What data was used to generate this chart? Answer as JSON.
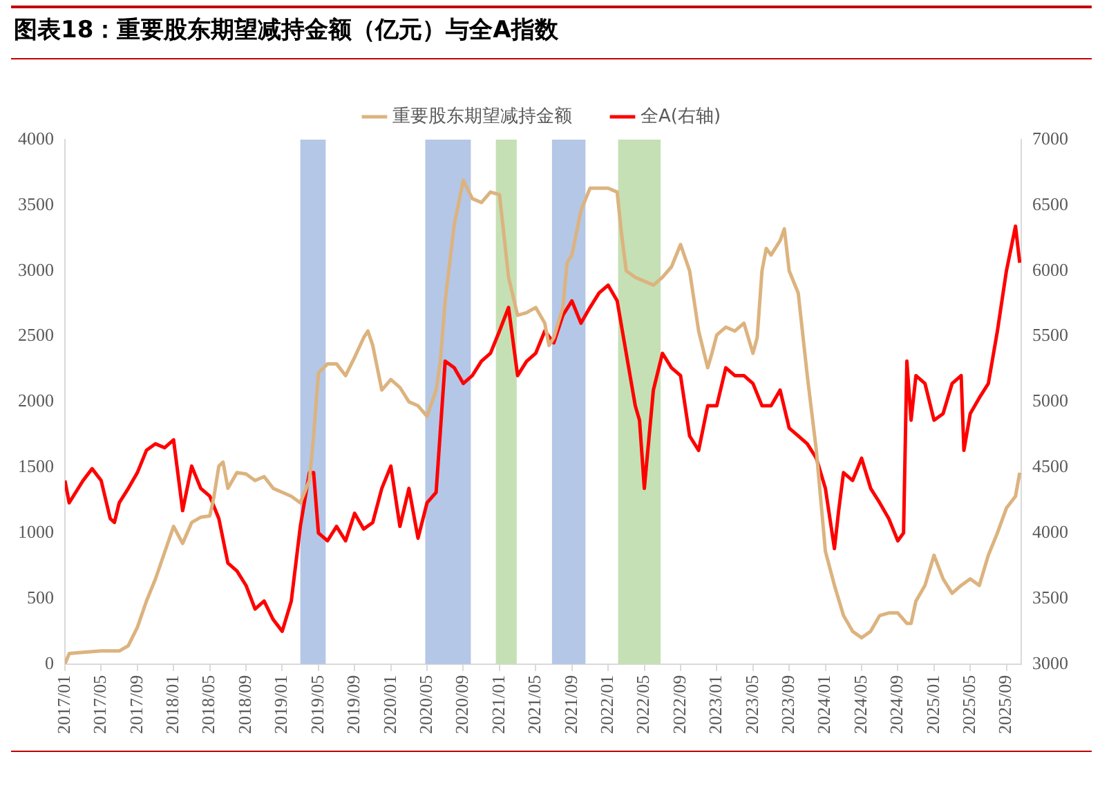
{
  "chart_data": {
    "type": "line",
    "title": "图表18：重要股东期望减持金额（亿元）与全A指数",
    "legend": "top",
    "grid": false,
    "marker": "none",
    "line_style": "solid",
    "xlim": [
      "2017-01-01",
      "2025-10-20"
    ],
    "xticks": [
      {
        "value": "2017-01",
        "label": "2017/01"
      },
      {
        "value": "2017-05",
        "label": "2017/05"
      },
      {
        "value": "2017-09",
        "label": "2017/09"
      },
      {
        "value": "2018-01",
        "label": "2018/01"
      },
      {
        "value": "2018-05",
        "label": "2018/05"
      },
      {
        "value": "2018-09",
        "label": "2018/09"
      },
      {
        "value": "2019-01",
        "label": "2019/01"
      },
      {
        "value": "2019-05",
        "label": "2019/05"
      },
      {
        "value": "2019-09",
        "label": "2019/09"
      },
      {
        "value": "2020-01",
        "label": "2020/01"
      },
      {
        "value": "2020-05",
        "label": "2020/05"
      },
      {
        "value": "2020-09",
        "label": "2020/09"
      },
      {
        "value": "2021-01",
        "label": "2021/01"
      },
      {
        "value": "2021-05",
        "label": "2021/05"
      },
      {
        "value": "2021-09",
        "label": "2021/09"
      },
      {
        "value": "2022-01",
        "label": "2022/01"
      },
      {
        "value": "2022-05",
        "label": "2022/05"
      },
      {
        "value": "2022-09",
        "label": "2022/09"
      },
      {
        "value": "2023-01",
        "label": "2023/01"
      },
      {
        "value": "2023-05",
        "label": "2023/05"
      },
      {
        "value": "2023-09",
        "label": "2023/09"
      },
      {
        "value": "2024-01",
        "label": "2024/01"
      },
      {
        "value": "2024-05",
        "label": "2024/05"
      },
      {
        "value": "2024-09",
        "label": "2024/09"
      },
      {
        "value": "2025-01",
        "label": "2025/01"
      },
      {
        "value": "2025-05",
        "label": "2025/05"
      },
      {
        "value": "2025-09",
        "label": "2025/09"
      }
    ],
    "ylim": [
      0,
      4000
    ],
    "yticks": [
      0,
      500,
      1000,
      1500,
      2000,
      2500,
      3000,
      3500,
      4000
    ],
    "y2lim": [
      3000,
      7000
    ],
    "y2ticks": [
      3000,
      3500,
      4000,
      4500,
      5000,
      5500,
      6000,
      6500,
      7000
    ],
    "bands": [
      {
        "axis": "x",
        "from": "2019-03-01",
        "to": "2019-05-25",
        "color": "#b4c7e7"
      },
      {
        "axis": "x",
        "from": "2020-04-25",
        "to": "2020-09-26",
        "color": "#b4c7e7"
      },
      {
        "axis": "x",
        "from": "2020-12-19",
        "to": "2021-02-28",
        "color": "#c5e0b4"
      },
      {
        "axis": "x",
        "from": "2021-06-25",
        "to": "2021-10-16",
        "color": "#b4c7e7"
      },
      {
        "axis": "x",
        "from": "2022-02-04",
        "to": "2022-06-25",
        "color": "#c5e0b4"
      }
    ],
    "series": [
      {
        "name": "重要股东期望减持金额",
        "color": "#dcb37f",
        "x": [
          "2017-01-01",
          "2017-01-15",
          "2017-03-01",
          "2017-05-01",
          "2017-07-01",
          "2017-08-01",
          "2017-09-01",
          "2017-10-01",
          "2017-11-01",
          "2017-12-01",
          "2018-01-01",
          "2018-02-01",
          "2018-03-01",
          "2018-04-01",
          "2018-05-01",
          "2018-05-15",
          "2018-06-01",
          "2018-06-15",
          "2018-07-01",
          "2018-08-01",
          "2018-09-01",
          "2018-10-01",
          "2018-11-01",
          "2018-12-01",
          "2019-01-01",
          "2019-02-01",
          "2019-03-01",
          "2019-04-01",
          "2019-04-15",
          "2019-05-01",
          "2019-06-01",
          "2019-07-01",
          "2019-08-01",
          "2019-09-01",
          "2019-10-01",
          "2019-10-15",
          "2019-11-01",
          "2019-12-01",
          "2020-01-01",
          "2020-02-01",
          "2020-03-01",
          "2020-04-01",
          "2020-05-01",
          "2020-06-01",
          "2020-06-15",
          "2020-07-01",
          "2020-08-01",
          "2020-09-01",
          "2020-10-01",
          "2020-11-01",
          "2020-12-01",
          "2021-01-01",
          "2021-01-15",
          "2021-02-01",
          "2021-03-01",
          "2021-04-01",
          "2021-05-01",
          "2021-06-01",
          "2021-06-15",
          "2021-07-01",
          "2021-08-01",
          "2021-08-15",
          "2021-09-01",
          "2021-10-01",
          "2021-11-01",
          "2021-12-01",
          "2022-01-01",
          "2022-02-01",
          "2022-02-15",
          "2022-03-01",
          "2022-04-01",
          "2022-05-01",
          "2022-06-01",
          "2022-07-01",
          "2022-08-01",
          "2022-09-01",
          "2022-10-01",
          "2022-11-01",
          "2022-12-01",
          "2022-12-15",
          "2023-01-01",
          "2023-02-01",
          "2023-03-01",
          "2023-04-01",
          "2023-05-01",
          "2023-05-15",
          "2023-06-01",
          "2023-06-15",
          "2023-07-01",
          "2023-08-01",
          "2023-08-15",
          "2023-09-01",
          "2023-10-01",
          "2023-11-01",
          "2023-12-01",
          "2024-01-01",
          "2024-02-01",
          "2024-03-01",
          "2024-04-01",
          "2024-05-01",
          "2024-06-01",
          "2024-07-01",
          "2024-08-01",
          "2024-09-01",
          "2024-10-01",
          "2024-10-15",
          "2024-11-01",
          "2024-12-01",
          "2025-01-01",
          "2025-02-01",
          "2025-03-01",
          "2025-04-01",
          "2025-05-01",
          "2025-06-01",
          "2025-07-01",
          "2025-08-01",
          "2025-09-01",
          "2025-10-01",
          "2025-10-15"
        ],
        "values": [
          0,
          80,
          90,
          100,
          100,
          140,
          280,
          480,
          650,
          850,
          1050,
          920,
          1080,
          1120,
          1130,
          1280,
          1510,
          1540,
          1340,
          1460,
          1450,
          1400,
          1430,
          1340,
          1310,
          1280,
          1230,
          1400,
          1740,
          2220,
          2290,
          2290,
          2200,
          2340,
          2490,
          2540,
          2430,
          2090,
          2170,
          2110,
          2000,
          1970,
          1890,
          2090,
          2310,
          2770,
          3350,
          3690,
          3550,
          3520,
          3600,
          3580,
          3290,
          2950,
          2660,
          2680,
          2720,
          2600,
          2430,
          2490,
          2720,
          3060,
          3120,
          3460,
          3630,
          3630,
          3630,
          3600,
          3290,
          3000,
          2950,
          2920,
          2890,
          2950,
          3030,
          3200,
          3000,
          2540,
          2260,
          2370,
          2510,
          2570,
          2540,
          2600,
          2370,
          2490,
          3000,
          3170,
          3120,
          3230,
          3320,
          3000,
          2830,
          2200,
          1630,
          860,
          600,
          370,
          250,
          200,
          250,
          370,
          390,
          390,
          310,
          310,
          480,
          600,
          830,
          650,
          540,
          600,
          650,
          600,
          830,
          1000,
          1190,
          1280,
          1460
        ]
      },
      {
        "name": "全A(右轴)",
        "color": "#ff0000",
        "axis": "y2",
        "x": [
          "2017-01-01",
          "2017-01-15",
          "2017-03-01",
          "2017-04-01",
          "2017-05-01",
          "2017-06-01",
          "2017-06-15",
          "2017-07-01",
          "2017-08-01",
          "2017-09-01",
          "2017-10-01",
          "2017-11-01",
          "2017-12-01",
          "2018-01-01",
          "2018-02-01",
          "2018-03-01",
          "2018-04-01",
          "2018-05-01",
          "2018-06-01",
          "2018-07-01",
          "2018-08-01",
          "2018-09-01",
          "2018-10-01",
          "2018-11-01",
          "2018-12-01",
          "2019-01-01",
          "2019-02-01",
          "2019-03-01",
          "2019-04-01",
          "2019-04-15",
          "2019-05-01",
          "2019-06-01",
          "2019-07-01",
          "2019-08-01",
          "2019-09-01",
          "2019-10-01",
          "2019-11-01",
          "2019-12-01",
          "2020-01-01",
          "2020-02-01",
          "2020-03-01",
          "2020-04-01",
          "2020-05-01",
          "2020-06-01",
          "2020-07-01",
          "2020-08-01",
          "2020-09-01",
          "2020-10-01",
          "2020-11-01",
          "2020-12-01",
          "2021-01-01",
          "2021-02-01",
          "2021-03-01",
          "2021-04-01",
          "2021-05-01",
          "2021-06-01",
          "2021-07-01",
          "2021-08-01",
          "2021-09-01",
          "2021-10-01",
          "2021-11-01",
          "2021-12-01",
          "2022-01-01",
          "2022-02-01",
          "2022-03-01",
          "2022-04-01",
          "2022-04-15",
          "2022-05-01",
          "2022-06-01",
          "2022-07-01",
          "2022-08-01",
          "2022-09-01",
          "2022-10-01",
          "2022-11-01",
          "2022-12-01",
          "2023-01-01",
          "2023-02-01",
          "2023-03-01",
          "2023-04-01",
          "2023-05-01",
          "2023-06-01",
          "2023-07-01",
          "2023-08-01",
          "2023-09-01",
          "2023-10-01",
          "2023-11-01",
          "2023-12-01",
          "2024-01-01",
          "2024-02-01",
          "2024-02-15",
          "2024-03-01",
          "2024-04-01",
          "2024-05-01",
          "2024-06-01",
          "2024-07-01",
          "2024-08-01",
          "2024-09-01",
          "2024-09-20",
          "2024-10-01",
          "2024-10-15",
          "2024-11-01",
          "2024-12-01",
          "2025-01-01",
          "2025-02-01",
          "2025-03-01",
          "2025-04-01",
          "2025-04-10",
          "2025-05-01",
          "2025-06-01",
          "2025-07-01",
          "2025-08-01",
          "2025-09-01",
          "2025-10-01",
          "2025-10-15"
        ],
        "values": [
          4400,
          4230,
          4400,
          4490,
          4400,
          4110,
          4080,
          4230,
          4340,
          4460,
          4630,
          4680,
          4650,
          4710,
          4170,
          4510,
          4340,
          4280,
          4110,
          3770,
          3710,
          3600,
          3420,
          3480,
          3340,
          3250,
          3480,
          4050,
          4460,
          4460,
          4000,
          3940,
          4050,
          3940,
          4150,
          4030,
          4080,
          4340,
          4510,
          4050,
          4340,
          3960,
          4230,
          4310,
          5310,
          5260,
          5140,
          5200,
          5310,
          5370,
          5540,
          5720,
          5200,
          5310,
          5370,
          5540,
          5450,
          5660,
          5770,
          5600,
          5720,
          5830,
          5890,
          5770,
          5370,
          4970,
          4860,
          4340,
          5090,
          5370,
          5260,
          5200,
          4740,
          4630,
          4970,
          4970,
          5260,
          5200,
          5200,
          5140,
          4970,
          4970,
          5090,
          4800,
          4740,
          4680,
          4570,
          4340,
          3880,
          4170,
          4460,
          4400,
          4570,
          4340,
          4230,
          4110,
          3940,
          4000,
          5310,
          4860,
          5200,
          5140,
          4860,
          4910,
          5140,
          5200,
          4630,
          4910,
          5030,
          5140,
          5540,
          6000,
          6340,
          6060
        ]
      }
    ]
  }
}
